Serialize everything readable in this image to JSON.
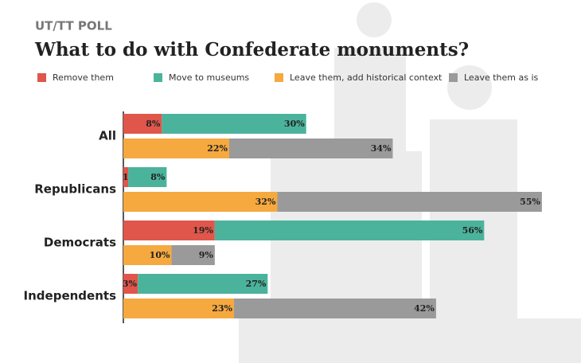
{
  "chart_data": {
    "type": "bar",
    "orientation": "horizontal",
    "kicker": "UT/TT POLL",
    "title": "What to do with Confederate monuments?",
    "categories": [
      "All",
      "Republicans",
      "Democrats",
      "Independents"
    ],
    "series": [
      {
        "name": "Remove them",
        "color": "#e0564a",
        "values": [
          8,
          1,
          19,
          3
        ],
        "value_labels": [
          "8%",
          "1%",
          "19%",
          "3%"
        ]
      },
      {
        "name": "Move to museums",
        "color": "#4bb39c",
        "values": [
          30,
          8,
          56,
          27
        ],
        "value_labels": [
          "30%",
          "8%",
          "56%",
          "27%"
        ]
      },
      {
        "name": "Leave them, add historical context",
        "color": "#f5a93f",
        "values": [
          22,
          32,
          10,
          23
        ],
        "value_labels": [
          "22%",
          "32%",
          "10%",
          "23%"
        ]
      },
      {
        "name": "Leave them as is",
        "color": "#9a9a9a",
        "values": [
          34,
          55,
          9,
          42
        ],
        "value_labels": [
          "34%",
          "55%",
          "9%",
          "42%"
        ]
      }
    ],
    "xlim": [
      0,
      90
    ]
  }
}
